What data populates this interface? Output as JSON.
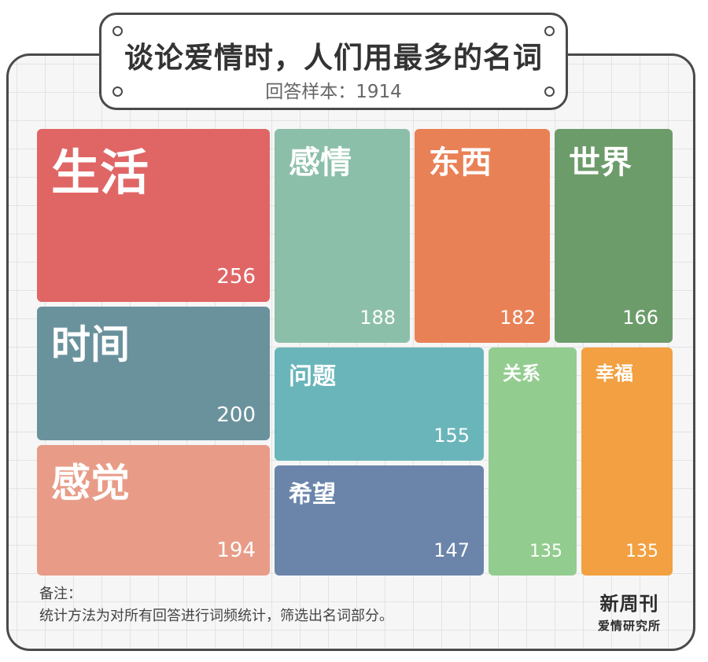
{
  "title": "谈论爱情时，人们用最多的名词",
  "subtitle": "回答样本：1914",
  "note": {
    "label": "备注：",
    "text": "统计方法为对所有回答进行词频统计，筛选出名词部分。"
  },
  "brand": {
    "line1": "新周刊",
    "line2": "爱情研究所"
  },
  "chart_data": {
    "type": "treemap",
    "title": "谈论爱情时，人们用最多的名词",
    "subtitle": "回答样本：1914",
    "items": [
      {
        "name": "生活",
        "value": 256,
        "color": "#e06666"
      },
      {
        "name": "时间",
        "value": 200,
        "color": "#6a929c"
      },
      {
        "name": "感觉",
        "value": 194,
        "color": "#e89c87"
      },
      {
        "name": "感情",
        "value": 188,
        "color": "#8cbfa9"
      },
      {
        "name": "东西",
        "value": 182,
        "color": "#e98156"
      },
      {
        "name": "世界",
        "value": 166,
        "color": "#6d9c6b"
      },
      {
        "name": "问题",
        "value": 155,
        "color": "#6ab5ba"
      },
      {
        "name": "希望",
        "value": 147,
        "color": "#6b85aa"
      },
      {
        "name": "关系",
        "value": 135,
        "color": "#93cc8f"
      },
      {
        "name": "幸福",
        "value": 135,
        "color": "#f2a041"
      }
    ]
  }
}
